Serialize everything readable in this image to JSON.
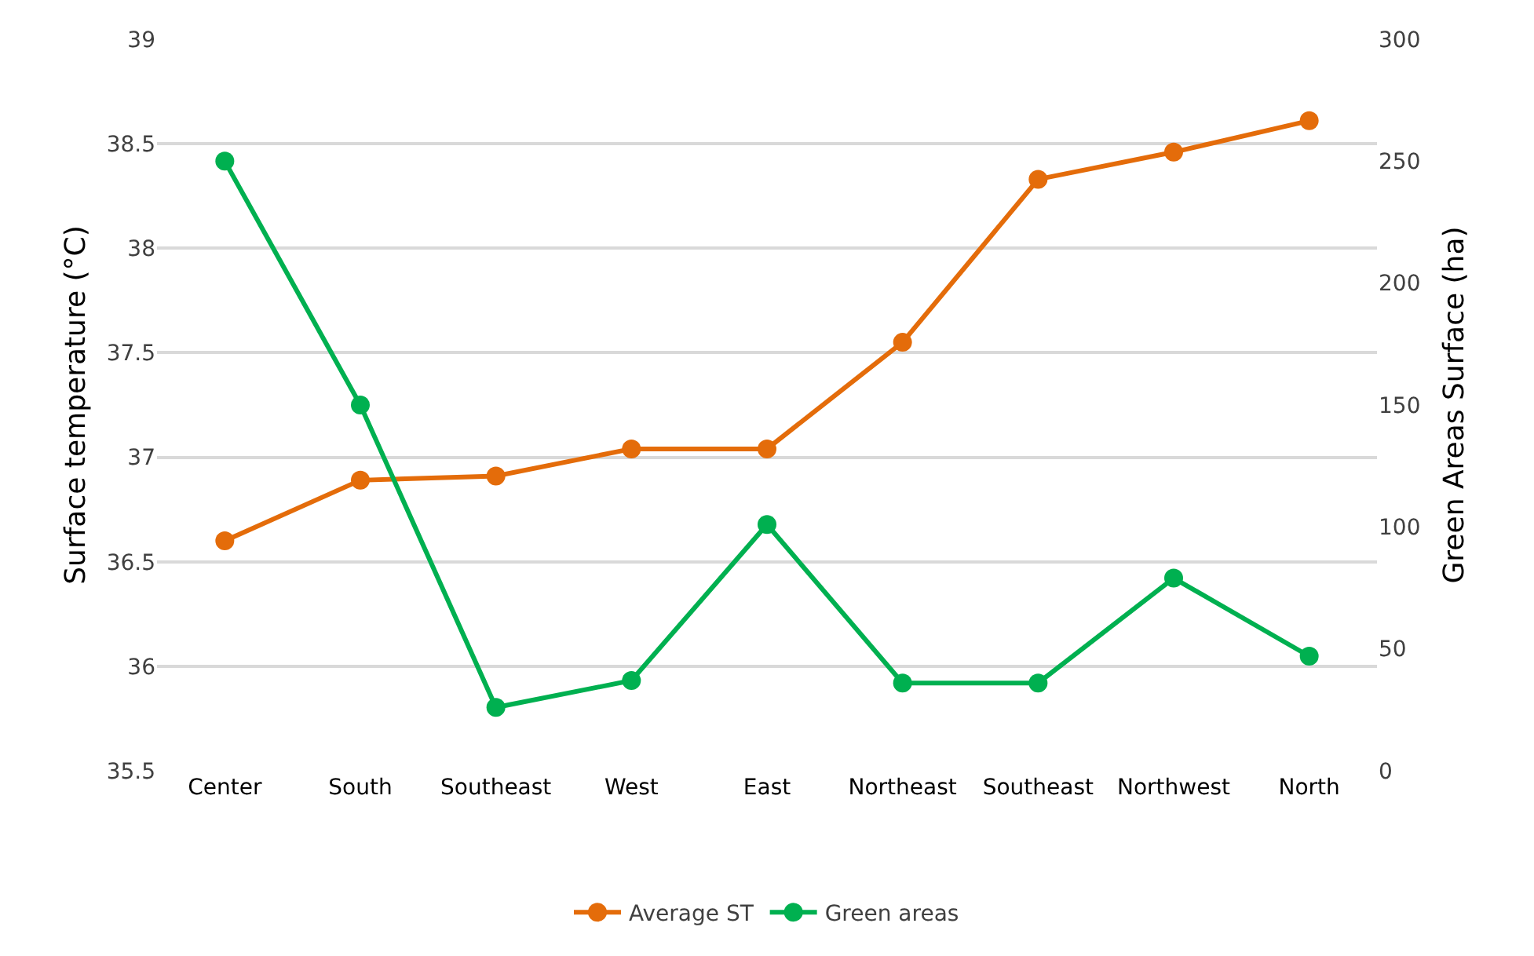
{
  "chart_data": {
    "type": "line",
    "ylabel": "Surface temperature (°C)",
    "y2label": "Green Areas Surface (ha)",
    "categories": [
      "Center",
      "South",
      "Southeast",
      "West",
      "East",
      "Northeast",
      "Southeast",
      "Northwest",
      "North"
    ],
    "series": [
      {
        "name": "Average ST",
        "color": "#e46c0a",
        "values": [
          36.6,
          36.89,
          36.91,
          37.04,
          37.04,
          37.55,
          38.33,
          38.46,
          38.61
        ]
      },
      {
        "name": "Green areas",
        "color": "#00b050",
        "axis": "y2",
        "values": [
          250,
          150,
          26,
          37,
          101,
          36,
          36,
          79,
          47
        ]
      }
    ],
    "ylim": [
      35.5,
      39
    ],
    "yticks": [
      35.5,
      36,
      36.5,
      37,
      37.5,
      38,
      38.5,
      39
    ],
    "y2lim": [
      0,
      300
    ],
    "y2ticks": [
      0,
      50,
      100,
      150,
      200,
      250,
      300
    ],
    "grid": "y",
    "legend": "bottom",
    "marker": "circle",
    "line_style": "solid"
  }
}
